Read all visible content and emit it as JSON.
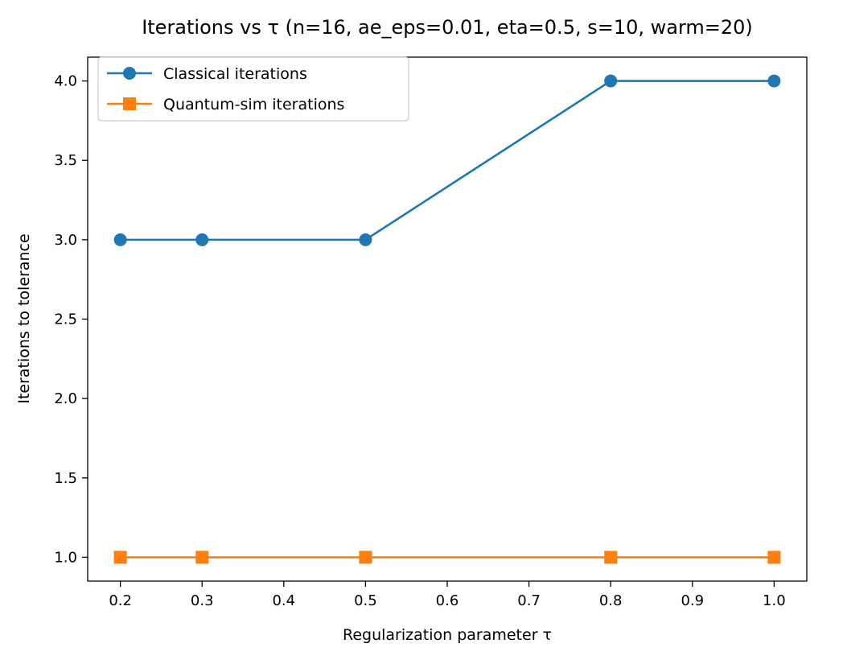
{
  "chart_data": {
    "type": "line",
    "title": "Iterations vs τ (n=16, ae_eps=0.01, eta=0.5, s=10, warm=20)",
    "xlabel": "Regularization parameter τ",
    "ylabel": "Iterations to tolerance",
    "x": [
      0.2,
      0.3,
      0.5,
      0.8,
      1.0
    ],
    "xlim": [
      0.16,
      1.04
    ],
    "ylim": [
      0.85,
      4.15
    ],
    "xticks": [
      0.2,
      0.3,
      0.4,
      0.5,
      0.6,
      0.7,
      0.8,
      0.9,
      1.0
    ],
    "xtick_labels": [
      "0.2",
      "0.3",
      "0.4",
      "0.5",
      "0.6",
      "0.7",
      "0.8",
      "0.9",
      "1.0"
    ],
    "yticks": [
      1.0,
      1.5,
      2.0,
      2.5,
      3.0,
      3.5,
      4.0
    ],
    "ytick_labels": [
      "1.0",
      "1.5",
      "2.0",
      "2.5",
      "3.0",
      "3.5",
      "4.0"
    ],
    "grid": false,
    "legend_position": "top-left",
    "series": [
      {
        "name": "Classical iterations",
        "values": [
          3,
          3,
          3,
          4,
          4
        ],
        "color": "#1f77b4",
        "marker": "circle"
      },
      {
        "name": "Quantum-sim iterations",
        "values": [
          1,
          1,
          1,
          1,
          1
        ],
        "color": "#ff7f0e",
        "marker": "square"
      }
    ]
  }
}
